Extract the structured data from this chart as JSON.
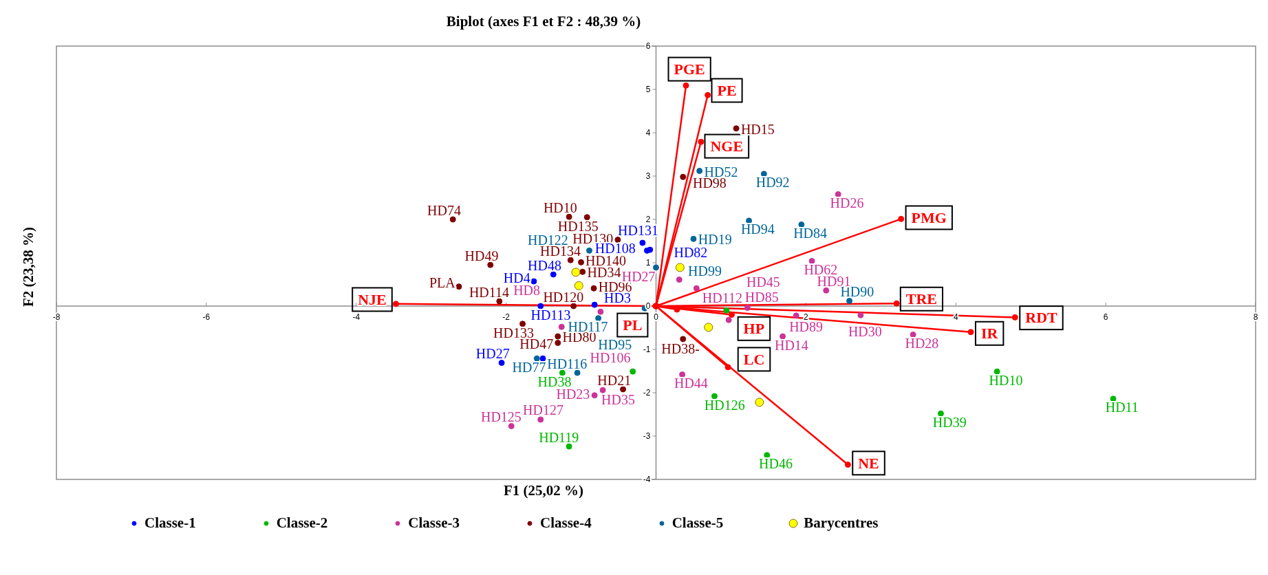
{
  "chart_data": {
    "type": "scatter",
    "title": "Biplot (axes F1 et F2 : 48,39 %)",
    "xlabel": "F1 (25,02 %)",
    "ylabel": "F2 (23,38 %)",
    "xlim": [
      -8,
      8
    ],
    "xticks": [
      -8,
      -6,
      -4,
      -2,
      0,
      2,
      4,
      6,
      8
    ],
    "ylim": [
      -4,
      6
    ],
    "yticks": [
      -4,
      -3,
      -2,
      -1,
      0,
      1,
      2,
      3,
      4,
      5,
      6
    ],
    "legend": "bottom",
    "marker": "circle",
    "series": [
      {
        "name": "Classe-1",
        "color": "#0000ff",
        "x": [
          -0.18,
          -0.12,
          -0.08,
          -1.37,
          -1.63,
          -1.54,
          -0.82,
          -1.51,
          -2.06
        ],
        "values": [
          1.46,
          1.28,
          1.3,
          0.73,
          0.57,
          0,
          0.03,
          -1.21,
          -1.31
        ]
      },
      {
        "name": "Classe-2",
        "color": "#00b800",
        "x": [
          -1.25,
          -0.31,
          -1.16,
          0.94,
          0.78,
          1.48,
          3.8,
          4.55,
          6.1
        ],
        "values": [
          -1.54,
          -1.51,
          -3.24,
          -0.1,
          -2.08,
          -3.44,
          -2.48,
          -1.51,
          -2.14
        ]
      },
      {
        "name": "Classe-3",
        "color": "#cc3399",
        "x": [
          -0.74,
          -1.26,
          0.35,
          -0.82,
          -0.71,
          -1.93,
          -1.54,
          2.43,
          0.31,
          0.54,
          2.08,
          2.27,
          1.22,
          0.97,
          1.87,
          2.73,
          3.43,
          1.69
        ],
        "values": [
          -0.13,
          -0.48,
          -1.58,
          -2.06,
          -1.94,
          -2.77,
          -2.62,
          2.58,
          0.61,
          0.41,
          1.04,
          0.36,
          -0.04,
          -0.32,
          -0.22,
          -0.21,
          -0.66,
          -0.7
        ]
      },
      {
        "name": "Classe-4",
        "color": "#7f0000",
        "x": [
          -2.71,
          -1.16,
          -0.92,
          -0.51,
          -1.14,
          -1,
          -0.98,
          -0.83,
          -2.21,
          -2.63,
          -2.09,
          -1.1,
          -1.78,
          -1.31,
          -1.31,
          -0.44,
          0.36,
          0.36,
          1.07
        ],
        "values": [
          2,
          2.06,
          2.05,
          1.53,
          1.06,
          1.01,
          0.79,
          0.41,
          0.95,
          0.45,
          0.11,
          0,
          -0.41,
          -0.7,
          -0.85,
          -1.92,
          -0.76,
          2.98,
          4.1
        ]
      },
      {
        "name": "Classe-5",
        "color": "#006699",
        "x": [
          -0.89,
          0,
          -0.15,
          -0.77,
          -1.59,
          -1.05,
          0.58,
          1.44,
          1.24,
          1.94,
          0.5,
          2.58
        ],
        "values": [
          1.28,
          0.89,
          -0.05,
          -0.28,
          -1.21,
          -1.54,
          3.12,
          3.05,
          1.97,
          1.88,
          1.55,
          0.12
        ]
      },
      {
        "name": "Barycentres",
        "color": "#ffff00",
        "x": [
          -1.07,
          -1.03,
          0.32,
          0.7,
          1.38
        ],
        "values": [
          0.78,
          0.47,
          0.89,
          -0.49,
          -2.22
        ]
      },
      {
        "type": "line",
        "name": "PGE",
        "color": "#ff0000",
        "x": [
          0,
          0.4
        ],
        "values": [
          0,
          5.09
        ]
      },
      {
        "type": "line",
        "name": "PE",
        "color": "#ff0000",
        "x": [
          0,
          0.69
        ],
        "values": [
          0,
          4.87
        ]
      },
      {
        "type": "line",
        "name": "NGE",
        "color": "#ff0000",
        "x": [
          0,
          0.6
        ],
        "values": [
          0,
          3.79
        ]
      },
      {
        "type": "line",
        "name": "PMG",
        "color": "#ff0000",
        "x": [
          0,
          3.27
        ],
        "values": [
          0,
          2.01
        ]
      },
      {
        "type": "line",
        "name": "TRE",
        "color": "#ff0000",
        "x": [
          0,
          3.21
        ],
        "values": [
          0,
          0.06
        ]
      },
      {
        "type": "line",
        "name": "RDT",
        "color": "#ff0000",
        "x": [
          0,
          4.79
        ],
        "values": [
          0,
          -0.26
        ]
      },
      {
        "type": "line",
        "name": "IR",
        "color": "#ff0000",
        "x": [
          0,
          4.2
        ],
        "values": [
          0,
          -0.6
        ]
      },
      {
        "type": "line",
        "name": "NE",
        "color": "#ff0000",
        "x": [
          0,
          2.56
        ],
        "values": [
          0,
          -3.66
        ]
      },
      {
        "type": "line",
        "name": "LC",
        "color": "#ff0000",
        "x": [
          0,
          0.96
        ],
        "values": [
          0,
          -1.41
        ]
      },
      {
        "type": "line",
        "name": "HP",
        "color": "#ff0000",
        "x": [
          0,
          1.01
        ],
        "values": [
          0,
          -0.2
        ]
      },
      {
        "type": "line",
        "name": "PL",
        "color": "#ff0000",
        "x": [
          0,
          0.28
        ],
        "values": [
          0,
          -0.08
        ]
      },
      {
        "type": "line",
        "name": "NJE",
        "color": "#ff0000",
        "x": [
          0,
          -3.47
        ],
        "values": [
          0,
          0.05
        ]
      }
    ],
    "annotations": [
      {
        "text": "HD74",
        "x": -2.71,
        "y": 2
      },
      {
        "text": "HD10",
        "x": -1.16,
        "y": 2.06
      },
      {
        "text": "HD135",
        "x": -0.92,
        "y": 2.05
      },
      {
        "text": "HD130",
        "x": -0.51,
        "y": 1.53
      },
      {
        "text": "HD134",
        "x": -1.14,
        "y": 1.06
      },
      {
        "text": "HD140",
        "x": -1,
        "y": 1.01
      },
      {
        "text": "HD34",
        "x": -0.98,
        "y": 0.79
      },
      {
        "text": "HD96",
        "x": -0.83,
        "y": 0.41
      },
      {
        "text": "HD49",
        "x": -2.21,
        "y": 0.95
      },
      {
        "text": "PLA",
        "x": -2.63,
        "y": 0.45
      },
      {
        "text": "HD114",
        "x": -2.09,
        "y": 0.11
      },
      {
        "text": "HD120",
        "x": -1.1,
        "y": 0
      },
      {
        "text": "HD133",
        "x": -1.78,
        "y": -0.41
      },
      {
        "text": "HD80",
        "x": -1.31,
        "y": -0.7
      },
      {
        "text": "HD47",
        "x": -1.31,
        "y": -0.85
      },
      {
        "text": "HD21",
        "x": -0.44,
        "y": -1.92
      },
      {
        "text": "HD38-",
        "x": 0.36,
        "y": -0.76
      },
      {
        "text": "HD98",
        "x": 0.36,
        "y": 2.98
      },
      {
        "text": "HD15",
        "x": 1.07,
        "y": 4.1
      },
      {
        "text": "HD131",
        "x": -0.18,
        "y": 1.46
      },
      {
        "text": "HD108",
        "x": -0.12,
        "y": 1.28
      },
      {
        "text": "HD82",
        "x": -0.08,
        "y": 1.3
      },
      {
        "text": "HD48",
        "x": -1.37,
        "y": 0.73
      },
      {
        "text": "HD4",
        "x": -1.63,
        "y": 0.57
      },
      {
        "text": "HD113",
        "x": -1.54,
        "y": 0
      },
      {
        "text": "HD3",
        "x": -0.82,
        "y": 0.03
      },
      {
        "text": "HD27",
        "x": -2.06,
        "y": -1.31
      },
      {
        "text": "HD122",
        "x": -0.89,
        "y": 1.28
      },
      {
        "text": "HD99",
        "x": 0,
        "y": 0.89
      },
      {
        "text": "HD117",
        "x": -0.15,
        "y": -0.05
      },
      {
        "text": "HD95",
        "x": -0.77,
        "y": -0.28
      },
      {
        "text": "HD77",
        "x": -1.59,
        "y": -1.21
      },
      {
        "text": "HD116",
        "x": -1.05,
        "y": -1.54
      },
      {
        "text": "HD52",
        "x": 0.58,
        "y": 3.12
      },
      {
        "text": "HD92",
        "x": 1.44,
        "y": 3.05
      },
      {
        "text": "HD94",
        "x": 1.24,
        "y": 1.97
      },
      {
        "text": "HD84",
        "x": 1.94,
        "y": 1.88
      },
      {
        "text": "HD19",
        "x": 0.5,
        "y": 1.55
      },
      {
        "text": "HD90",
        "x": 2.58,
        "y": 0.12
      },
      {
        "text": "HD106",
        "x": -0.74,
        "y": -0.13
      },
      {
        "text": "HD8",
        "x": -1.26,
        "y": -0.48
      },
      {
        "text": "HD44",
        "x": 0.35,
        "y": -1.58
      },
      {
        "text": "HD23",
        "x": -0.82,
        "y": -2.06
      },
      {
        "text": "HD35",
        "x": -0.71,
        "y": -1.94
      },
      {
        "text": "HD125",
        "x": -1.93,
        "y": -2.77
      },
      {
        "text": "HD127",
        "x": -1.54,
        "y": -2.62
      },
      {
        "text": "HD26",
        "x": 2.43,
        "y": 2.58
      },
      {
        "text": "HD27",
        "x": 0.31,
        "y": 0.61
      },
      {
        "text": "HD112",
        "x": 0.54,
        "y": 0.41
      },
      {
        "text": "HD62",
        "x": 2.08,
        "y": 1.04
      },
      {
        "text": "HD91",
        "x": 2.27,
        "y": 0.36
      },
      {
        "text": "HD85",
        "x": 1.22,
        "y": -0.04
      },
      {
        "text": "HD45",
        "x": 0.97,
        "y": -0.32
      },
      {
        "text": "HD89",
        "x": 1.87,
        "y": -0.22
      },
      {
        "text": "HD30",
        "x": 2.73,
        "y": -0.21
      },
      {
        "text": "HD28",
        "x": 3.43,
        "y": -0.66
      },
      {
        "text": "HD14",
        "x": 1.69,
        "y": -0.7
      },
      {
        "text": "HD38",
        "x": -1.25,
        "y": -1.54
      },
      {
        "text": "HD119",
        "x": -1.16,
        "y": -3.24
      },
      {
        "text": "HD126",
        "x": 0.78,
        "y": -2.08
      },
      {
        "text": "HD46",
        "x": 1.48,
        "y": -3.44
      },
      {
        "text": "HD39",
        "x": 3.8,
        "y": -2.48
      },
      {
        "text": "HD10",
        "x": 4.55,
        "y": -1.51
      },
      {
        "text": "HD11",
        "x": 6.1,
        "y": -2.14
      }
    ]
  }
}
